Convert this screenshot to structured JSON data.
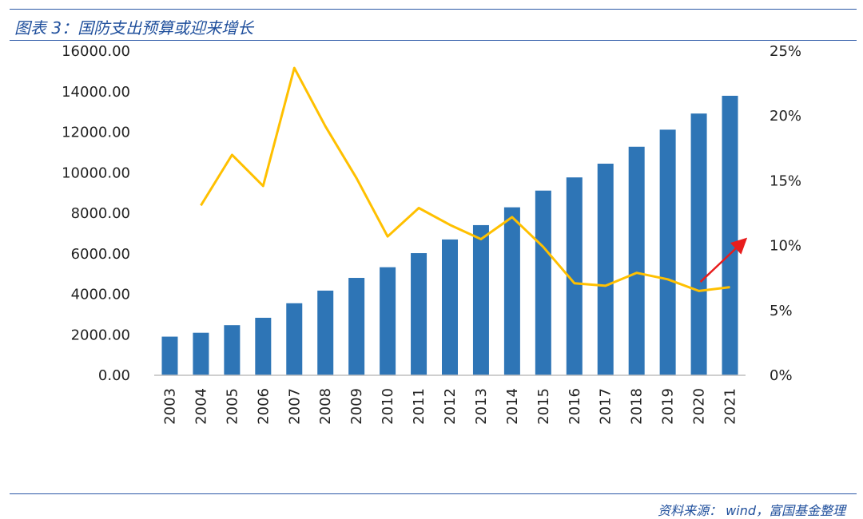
{
  "figure": {
    "title": "图表 3：国防支出预算或迎来增长",
    "source": "资料来源： wind，富国基金整理"
  },
  "colors": {
    "bar": "#2e75b6",
    "line": "#ffc000",
    "arrow": "#e81d1d",
    "rule": "#2a57a6",
    "text": "#1f4f9c"
  },
  "chart_data": {
    "type": "bar",
    "title": "",
    "xlabel": "",
    "ylabel": "",
    "categories": [
      "2003",
      "2004",
      "2005",
      "2006",
      "2007",
      "2008",
      "2009",
      "2010",
      "2011",
      "2012",
      "2013",
      "2014",
      "2015",
      "2016",
      "2017",
      "2018",
      "2019",
      "2020",
      "2021"
    ],
    "ylim": [
      0,
      16000
    ],
    "y_ticks": [
      "0.00",
      "2000.00",
      "4000.00",
      "6000.00",
      "8000.00",
      "10000.00",
      "12000.00",
      "14000.00",
      "16000.00"
    ],
    "y2lim": [
      0,
      25
    ],
    "y2_ticks": [
      "0%",
      "5%",
      "10%",
      "15%",
      "20%",
      "25%"
    ],
    "grid": false,
    "legend": "none",
    "series": [
      {
        "type": "bar",
        "axis": "left",
        "values": [
          1908,
          2100,
          2475,
          2838,
          3555,
          4178,
          4807,
          5333,
          6028,
          6703,
          7411,
          8290,
          9115,
          9766,
          10444,
          11280,
          12122,
          12918,
          13795
        ]
      },
      {
        "type": "line",
        "axis": "right",
        "values": [
          null,
          13.1,
          17.0,
          14.6,
          23.7,
          19.2,
          15.2,
          10.7,
          12.9,
          11.6,
          10.5,
          12.2,
          9.9,
          7.1,
          6.9,
          7.9,
          7.4,
          6.5,
          6.8
        ]
      }
    ],
    "annotations": [
      {
        "type": "arrow",
        "from": [
          "2020",
          7.2
        ],
        "to": [
          "2021",
          10.4
        ]
      }
    ]
  }
}
